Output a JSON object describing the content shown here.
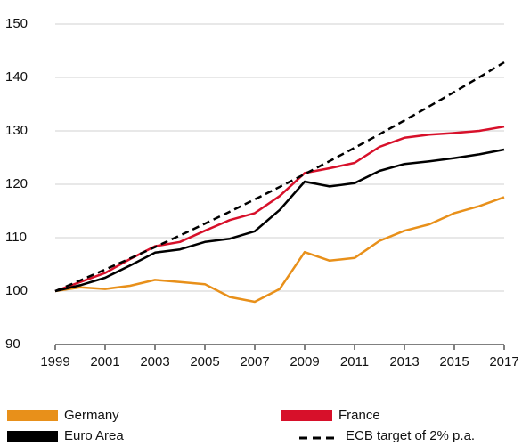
{
  "chart_data": {
    "type": "line",
    "x": [
      1999,
      2000,
      2001,
      2002,
      2003,
      2004,
      2005,
      2006,
      2007,
      2008,
      2009,
      2010,
      2011,
      2012,
      2013,
      2014,
      2015,
      2016,
      2017
    ],
    "series": [
      {
        "name": "Germany",
        "color": "#e8901a",
        "dashed": false,
        "values": [
          100,
          100.7,
          100.4,
          101.0,
          102.1,
          101.7,
          101.3,
          98.9,
          98.0,
          100.4,
          107.3,
          105.7,
          106.2,
          109.4,
          111.3,
          112.5,
          114.6,
          115.9,
          117.6
        ]
      },
      {
        "name": "France",
        "color": "#d7102a",
        "dashed": false,
        "values": [
          100,
          101.7,
          103.4,
          106.0,
          108.4,
          109.2,
          111.3,
          113.3,
          114.6,
          117.8,
          122.1,
          123.0,
          124.0,
          127.0,
          128.7,
          129.3,
          129.6,
          130.0,
          130.8
        ]
      },
      {
        "name": "Euro Area",
        "color": "#000000",
        "dashed": false,
        "values": [
          100,
          101.1,
          102.5,
          104.8,
          107.2,
          107.8,
          109.2,
          109.8,
          111.2,
          115.2,
          120.5,
          119.6,
          120.2,
          122.5,
          123.8,
          124.3,
          124.9,
          125.6,
          126.5
        ]
      },
      {
        "name": "ECB target of 2% p.a.",
        "color": "#000000",
        "dashed": true,
        "values": [
          100,
          102,
          104.04,
          106.12,
          108.24,
          110.41,
          112.62,
          114.87,
          117.17,
          119.51,
          121.9,
          124.34,
          126.82,
          129.36,
          131.95,
          134.59,
          137.28,
          140.02,
          142.82
        ]
      }
    ],
    "xlim": [
      1999,
      2017
    ],
    "xticks": [
      1999,
      2001,
      2003,
      2005,
      2007,
      2009,
      2011,
      2013,
      2015,
      2017
    ],
    "ylim": [
      90,
      150
    ],
    "yticks": [
      90,
      100,
      110,
      120,
      130,
      140,
      150
    ],
    "grid": true,
    "legend": "bottom"
  }
}
